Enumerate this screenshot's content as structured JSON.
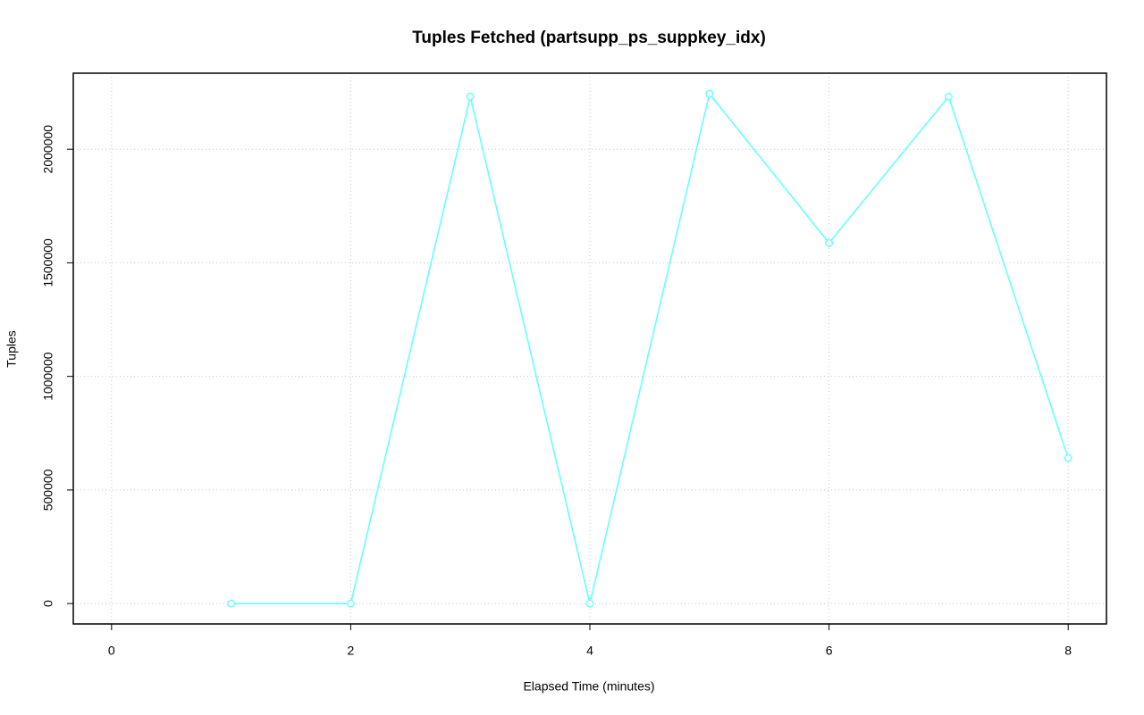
{
  "chart_data": {
    "type": "line",
    "title": "Tuples Fetched (partsupp_ps_suppkey_idx)",
    "xlabel": "Elapsed Time (minutes)",
    "ylabel": "Tuples",
    "x": [
      1,
      2,
      3,
      4,
      5,
      6,
      7,
      8
    ],
    "series": [
      {
        "color": "#66ffff",
        "values": [
          0,
          0,
          2231800,
          0,
          2243600,
          1587400,
          2231800,
          640500
        ]
      }
    ],
    "xlim": [
      -0.32,
      8.32
    ],
    "xticks": [
      0,
      2,
      4,
      6,
      8
    ],
    "ylim": [
      -89800,
      2334800
    ],
    "yticks": [
      0,
      500000,
      1000000,
      1500000,
      2000000
    ],
    "grid": true
  }
}
